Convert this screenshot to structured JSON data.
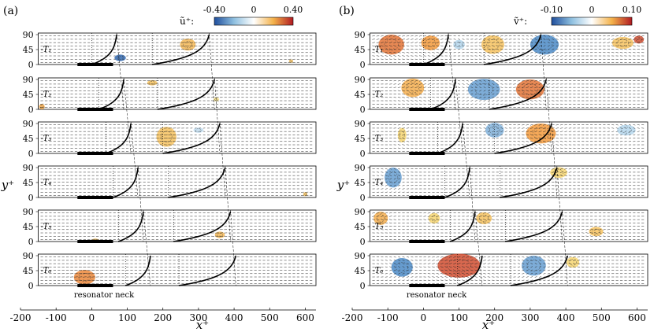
{
  "chart_data": [
    {
      "type": "vector-field-contour",
      "panel_label": "(a)",
      "colorbar": {
        "label": "ũ⁺:",
        "ticks": [
          "-0.40",
          "0",
          "0.40"
        ],
        "range": [
          -0.4,
          0.4
        ],
        "colors": [
          "#2c5fb0",
          "#ffffff",
          "#c8302a"
        ]
      },
      "xlabel": "x⁺",
      "ylabel": "y⁺",
      "xlim": [
        -200,
        630
      ],
      "xticks": [
        "-200",
        "-100",
        "0",
        "100",
        "200",
        "300",
        "400",
        "500",
        "600"
      ],
      "yticks": [
        "0",
        "45",
        "90"
      ],
      "phases": [
        {
          "label": "T₁",
          "profile1_x": 0,
          "profile2_x": 170,
          "blobs": [
            {
              "x": 80,
              "y": 20,
              "rx": 16,
              "ry": 10,
              "v": -0.35
            },
            {
              "x": 270,
              "y": 60,
              "rx": 22,
              "ry": 18,
              "v": 0.22
            },
            {
              "x": 560,
              "y": 10,
              "rx": 6,
              "ry": 5,
              "v": 0.2
            }
          ]
        },
        {
          "label": "T₂",
          "profile1_x": 20,
          "profile2_x": 185,
          "blobs": [
            {
              "x": 170,
              "y": 80,
              "rx": 14,
              "ry": 8,
              "v": 0.2
            },
            {
              "x": 350,
              "y": 30,
              "rx": 8,
              "ry": 6,
              "v": 0.12
            },
            {
              "x": -140,
              "y": 8,
              "rx": 8,
              "ry": 8,
              "v": 0.25
            }
          ]
        },
        {
          "label": "T₃",
          "profile1_x": 40,
          "profile2_x": 200,
          "blobs": [
            {
              "x": 210,
              "y": 50,
              "rx": 28,
              "ry": 30,
              "v": 0.2
            },
            {
              "x": 300,
              "y": 70,
              "rx": 14,
              "ry": 8,
              "v": -0.1
            }
          ]
        },
        {
          "label": "T₄",
          "profile1_x": 60,
          "profile2_x": 215,
          "blobs": [
            {
              "x": 600,
              "y": 10,
              "rx": 6,
              "ry": 6,
              "v": 0.2
            }
          ]
        },
        {
          "label": "T₅",
          "profile1_x": 75,
          "profile2_x": 230,
          "blobs": [
            {
              "x": 10,
              "y": 4,
              "rx": 10,
              "ry": 5,
              "v": 0.2
            },
            {
              "x": 360,
              "y": 20,
              "rx": 14,
              "ry": 10,
              "v": 0.22
            }
          ]
        },
        {
          "label": "T₆",
          "profile1_x": 95,
          "profile2_x": 245,
          "blobs": [
            {
              "x": -20,
              "y": 25,
              "rx": 30,
              "ry": 22,
              "v": 0.3
            }
          ]
        }
      ],
      "annotation": "resonator neck"
    },
    {
      "type": "vector-field-contour",
      "panel_label": "(b)",
      "colorbar": {
        "label": "ṽ⁺:",
        "ticks": [
          "-0.10",
          "0",
          "0.10"
        ],
        "range": [
          -0.1,
          0.1
        ],
        "colors": [
          "#2c5fb0",
          "#ffffff",
          "#c8302a"
        ]
      },
      "xlabel": "x⁺",
      "ylabel": "y⁺",
      "xlim": [
        -200,
        630
      ],
      "xticks": [
        "-200",
        "-100",
        "0",
        "100",
        "200",
        "300",
        "400",
        "500",
        "600"
      ],
      "yticks": [
        "0",
        "45",
        "90"
      ],
      "phases": [
        {
          "label": "T₁",
          "profile1_x": 0,
          "profile2_x": 170,
          "blobs": [
            {
              "x": -90,
              "y": 60,
              "rx": 36,
              "ry": 30,
              "v": 0.08
            },
            {
              "x": 20,
              "y": 65,
              "rx": 26,
              "ry": 22,
              "v": 0.07
            },
            {
              "x": 100,
              "y": 60,
              "rx": 16,
              "ry": 14,
              "v": -0.03
            },
            {
              "x": 195,
              "y": 60,
              "rx": 32,
              "ry": 28,
              "v": 0.05
            },
            {
              "x": 340,
              "y": 60,
              "rx": 40,
              "ry": 30,
              "v": -0.07
            },
            {
              "x": 560,
              "y": 65,
              "rx": 30,
              "ry": 18,
              "v": 0.05
            },
            {
              "x": 605,
              "y": 75,
              "rx": 14,
              "ry": 12,
              "v": 0.09
            }
          ]
        },
        {
          "label": "T₂",
          "profile1_x": 20,
          "profile2_x": 185,
          "blobs": [
            {
              "x": -30,
              "y": 65,
              "rx": 32,
              "ry": 28,
              "v": 0.06
            },
            {
              "x": 170,
              "y": 60,
              "rx": 45,
              "ry": 32,
              "v": -0.06
            },
            {
              "x": 300,
              "y": 60,
              "rx": 40,
              "ry": 30,
              "v": 0.08
            }
          ]
        },
        {
          "label": "T₃",
          "profile1_x": 40,
          "profile2_x": 200,
          "blobs": [
            {
              "x": -60,
              "y": 55,
              "rx": 12,
              "ry": 22,
              "v": 0.04
            },
            {
              "x": 200,
              "y": 70,
              "rx": 26,
              "ry": 22,
              "v": -0.05
            },
            {
              "x": 330,
              "y": 60,
              "rx": 42,
              "ry": 30,
              "v": 0.07
            },
            {
              "x": 570,
              "y": 70,
              "rx": 26,
              "ry": 16,
              "v": -0.03
            }
          ]
        },
        {
          "label": "T₄",
          "profile1_x": 60,
          "profile2_x": 215,
          "blobs": [
            {
              "x": -85,
              "y": 60,
              "rx": 24,
              "ry": 30,
              "v": -0.06
            },
            {
              "x": 380,
              "y": 75,
              "rx": 24,
              "ry": 16,
              "v": 0.04
            }
          ]
        },
        {
          "label": "T₅",
          "profile1_x": 75,
          "profile2_x": 230,
          "blobs": [
            {
              "x": -120,
              "y": 70,
              "rx": 20,
              "ry": 20,
              "v": 0.06
            },
            {
              "x": 30,
              "y": 70,
              "rx": 16,
              "ry": 16,
              "v": 0.04
            },
            {
              "x": 170,
              "y": 70,
              "rx": 22,
              "ry": 18,
              "v": 0.05
            },
            {
              "x": 485,
              "y": 30,
              "rx": 20,
              "ry": 14,
              "v": 0.05
            }
          ]
        },
        {
          "label": "T₆",
          "profile1_x": 95,
          "profile2_x": 245,
          "blobs": [
            {
              "x": -60,
              "y": 55,
              "rx": 30,
              "ry": 28,
              "v": -0.07
            },
            {
              "x": 100,
              "y": 60,
              "rx": 60,
              "ry": 36,
              "v": 0.09
            },
            {
              "x": 310,
              "y": 60,
              "rx": 34,
              "ry": 30,
              "v": -0.06
            },
            {
              "x": 420,
              "y": 70,
              "rx": 18,
              "ry": 16,
              "v": 0.04
            }
          ]
        }
      ],
      "annotation": "resonator neck"
    }
  ]
}
